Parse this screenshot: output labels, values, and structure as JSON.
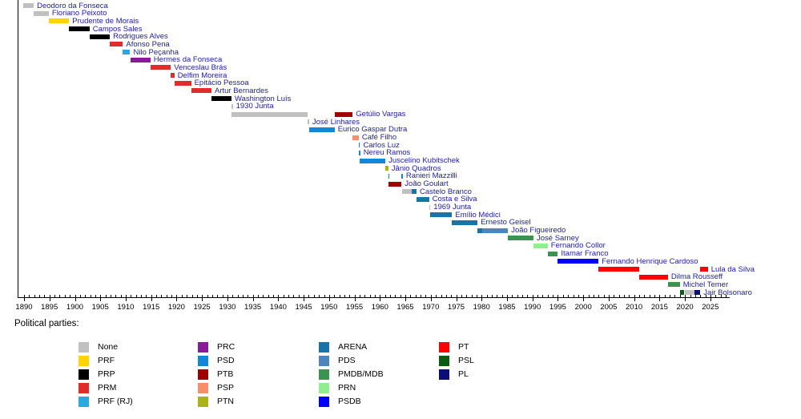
{
  "chart_data": {
    "type": "bar",
    "subtype": "gantt-timeline",
    "title": "",
    "axis": {
      "unit": "year",
      "min": 1890,
      "max": 2028.5,
      "major_tick_step": 5,
      "minor_tick_step": 1,
      "tick_labels": [
        "1890",
        "1895",
        "1900",
        "1905",
        "1910",
        "1915",
        "1920",
        "1925",
        "1930",
        "1935",
        "1940",
        "1945",
        "1950",
        "1955",
        "1960",
        "1965",
        "1970",
        "1975",
        "1980",
        "1985",
        "1990",
        "1995",
        "2000",
        "2005",
        "2010",
        "2015",
        "2020",
        "2025"
      ]
    },
    "parties": [
      {
        "id": "None",
        "label": "None",
        "color": "#C0C0C0"
      },
      {
        "id": "PRF",
        "label": "PRF",
        "color": "#FFD400"
      },
      {
        "id": "PRP",
        "label": "PRP",
        "color": "#000000"
      },
      {
        "id": "PRM",
        "label": "PRM",
        "color": "#E12C2C"
      },
      {
        "id": "PRF (RJ)",
        "label": "PRF (RJ)",
        "color": "#2AA9E0"
      },
      {
        "id": "PRC",
        "label": "PRC",
        "color": "#8B1A9B"
      },
      {
        "id": "PSD",
        "label": "PSD",
        "color": "#1287D8"
      },
      {
        "id": "PTB",
        "label": "PTB",
        "color": "#A00000"
      },
      {
        "id": "PSP",
        "label": "PSP",
        "color": "#F98E6A"
      },
      {
        "id": "PTN",
        "label": "PTN",
        "color": "#AAB414"
      },
      {
        "id": "ARENA",
        "label": "ARENA",
        "color": "#1874A8"
      },
      {
        "id": "PDS",
        "label": "PDS",
        "color": "#4F84BC"
      },
      {
        "id": "PMDB/MDB",
        "label": "PMDB/MDB",
        "color": "#3A9352"
      },
      {
        "id": "PRN",
        "label": "PRN",
        "color": "#90EE90"
      },
      {
        "id": "PSDB",
        "label": "PSDB",
        "color": "#0000FF"
      },
      {
        "id": "PT",
        "label": "PT",
        "color": "#FF0000"
      },
      {
        "id": "PSL",
        "label": "PSL",
        "color": "#0A5C12"
      },
      {
        "id": "PL",
        "label": "PL",
        "color": "#0D0D78"
      }
    ],
    "presidents": [
      {
        "name": "Deodoro da Fonseca",
        "segments": [
          {
            "from": 1889.87,
            "to": 1891.9,
            "party": "None"
          }
        ]
      },
      {
        "name": "Floriano Peixoto",
        "segments": [
          {
            "from": 1891.9,
            "to": 1894.87,
            "party": "None"
          }
        ]
      },
      {
        "name": "Prudente de Morais",
        "segments": [
          {
            "from": 1894.87,
            "to": 1898.87,
            "party": "PRF"
          }
        ]
      },
      {
        "name": "Campos Sales",
        "segments": [
          {
            "from": 1898.87,
            "to": 1902.87,
            "party": "PRP"
          }
        ]
      },
      {
        "name": "Rodrigues Alves",
        "segments": [
          {
            "from": 1902.87,
            "to": 1906.87,
            "party": "PRP"
          }
        ]
      },
      {
        "name": "Afonso Pena",
        "segments": [
          {
            "from": 1906.87,
            "to": 1909.45,
            "party": "PRM"
          }
        ]
      },
      {
        "name": "Nilo Peçanha",
        "segments": [
          {
            "from": 1909.45,
            "to": 1910.87,
            "party": "PRF (RJ)"
          }
        ]
      },
      {
        "name": "Hermes da Fonseca",
        "segments": [
          {
            "from": 1910.87,
            "to": 1914.87,
            "party": "PRC"
          }
        ]
      },
      {
        "name": "Venceslau Brás",
        "segments": [
          {
            "from": 1914.87,
            "to": 1918.87,
            "party": "PRM"
          }
        ]
      },
      {
        "name": "Delfim Moreira",
        "segments": [
          {
            "from": 1918.87,
            "to": 1919.57,
            "party": "PRM"
          }
        ]
      },
      {
        "name": "Epitácio Pessoa",
        "segments": [
          {
            "from": 1919.57,
            "to": 1922.87,
            "party": "PRM"
          }
        ]
      },
      {
        "name": "Artur Bernardes",
        "segments": [
          {
            "from": 1922.87,
            "to": 1926.87,
            "party": "PRM"
          }
        ]
      },
      {
        "name": "Washington Luís",
        "segments": [
          {
            "from": 1926.87,
            "to": 1930.81,
            "party": "PRP"
          }
        ]
      },
      {
        "name": "1930 Junta",
        "segments": [
          {
            "from": 1930.81,
            "to": 1930.84,
            "party": "None"
          }
        ]
      },
      {
        "name": "Getúlio Vargas",
        "segments": [
          {
            "from": 1930.84,
            "to": 1945.82,
            "party": "None"
          },
          {
            "from": 1951.08,
            "to": 1954.65,
            "party": "PTB"
          }
        ]
      },
      {
        "name": "José Linhares",
        "segments": [
          {
            "from": 1945.82,
            "to": 1946.08,
            "party": "None"
          }
        ]
      },
      {
        "name": "Eurico Gaspar Dutra",
        "segments": [
          {
            "from": 1946.08,
            "to": 1951.08,
            "party": "PSD"
          }
        ]
      },
      {
        "name": "Café Filho",
        "segments": [
          {
            "from": 1954.65,
            "to": 1955.85,
            "party": "PSP"
          }
        ]
      },
      {
        "name": "Carlos Luz",
        "segments": [
          {
            "from": 1955.85,
            "to": 1955.87,
            "party": "PSD"
          }
        ]
      },
      {
        "name": "Nereu Ramos",
        "segments": [
          {
            "from": 1955.87,
            "to": 1956.08,
            "party": "PSD"
          }
        ]
      },
      {
        "name": "Juscelino Kubitschek",
        "segments": [
          {
            "from": 1956.08,
            "to": 1961.08,
            "party": "PSD"
          }
        ]
      },
      {
        "name": "Jânio Quadros",
        "segments": [
          {
            "from": 1961.08,
            "to": 1961.65,
            "party": "PTN"
          }
        ]
      },
      {
        "name": "Ranieri Mazzilli",
        "segments": [
          {
            "from": 1961.65,
            "to": 1961.69,
            "party": "PSD"
          },
          {
            "from": 1964.25,
            "to": 1964.29,
            "party": "PSD"
          }
        ]
      },
      {
        "name": "João Goulart",
        "segments": [
          {
            "from": 1961.69,
            "to": 1964.25,
            "party": "PTB"
          }
        ]
      },
      {
        "name": "Castelo Branco",
        "segments": [
          {
            "from": 1964.29,
            "to": 1966.3,
            "party": "None"
          },
          {
            "from": 1966.3,
            "to": 1967.2,
            "party": "ARENA"
          }
        ]
      },
      {
        "name": "Costa e Silva",
        "segments": [
          {
            "from": 1967.2,
            "to": 1969.66,
            "party": "ARENA"
          }
        ]
      },
      {
        "name": "1969 Junta",
        "segments": [
          {
            "from": 1969.66,
            "to": 1969.83,
            "party": "None"
          }
        ]
      },
      {
        "name": "Emílio Médici",
        "segments": [
          {
            "from": 1969.83,
            "to": 1974.2,
            "party": "ARENA"
          }
        ]
      },
      {
        "name": "Ernesto Geisel",
        "segments": [
          {
            "from": 1974.2,
            "to": 1979.2,
            "party": "ARENA"
          }
        ]
      },
      {
        "name": "João Figueiredo",
        "segments": [
          {
            "from": 1979.2,
            "to": 1980.1,
            "party": "ARENA"
          },
          {
            "from": 1980.1,
            "to": 1985.2,
            "party": "PDS"
          }
        ]
      },
      {
        "name": "José Sarney",
        "segments": [
          {
            "from": 1985.2,
            "to": 1990.2,
            "party": "PMDB/MDB"
          }
        ]
      },
      {
        "name": "Fernando Collor",
        "segments": [
          {
            "from": 1990.2,
            "to": 1992.99,
            "party": "PRN"
          }
        ]
      },
      {
        "name": "Itamar Franco",
        "segments": [
          {
            "from": 1992.99,
            "to": 1995.0,
            "party": "PMDB/MDB"
          }
        ]
      },
      {
        "name": "Fernando Henrique Cardoso",
        "segments": [
          {
            "from": 1995.0,
            "to": 2003.0,
            "party": "PSDB"
          }
        ]
      },
      {
        "name": "Lula da Silva",
        "segments": [
          {
            "from": 2003.0,
            "to": 2011.0,
            "party": "PT"
          },
          {
            "from": 2023.0,
            "to": 2024.5,
            "party": "PT"
          }
        ]
      },
      {
        "name": "Dilma Rousseff",
        "segments": [
          {
            "from": 2011.0,
            "to": 2016.66,
            "party": "PT"
          }
        ]
      },
      {
        "name": "Michel Temer",
        "segments": [
          {
            "from": 2016.66,
            "to": 2019.0,
            "party": "PMDB/MDB"
          }
        ]
      },
      {
        "name": "Jair Bolsonaro",
        "segments": [
          {
            "from": 2019.0,
            "to": 2019.9,
            "party": "PSL"
          },
          {
            "from": 2019.9,
            "to": 2021.9,
            "party": "None"
          },
          {
            "from": 2021.9,
            "to": 2023.0,
            "party": "PL"
          }
        ]
      }
    ]
  },
  "legend": {
    "title": "Political parties:",
    "columns": [
      [
        "None",
        "PRF",
        "PRP",
        "PRM",
        "PRF (RJ)"
      ],
      [
        "PRC",
        "PSD",
        "PTB",
        "PSP",
        "PTN"
      ],
      [
        "ARENA",
        "PDS",
        "PMDB/MDB",
        "PRN",
        "PSDB"
      ],
      [
        "PT",
        "PSL",
        "PL"
      ]
    ]
  }
}
